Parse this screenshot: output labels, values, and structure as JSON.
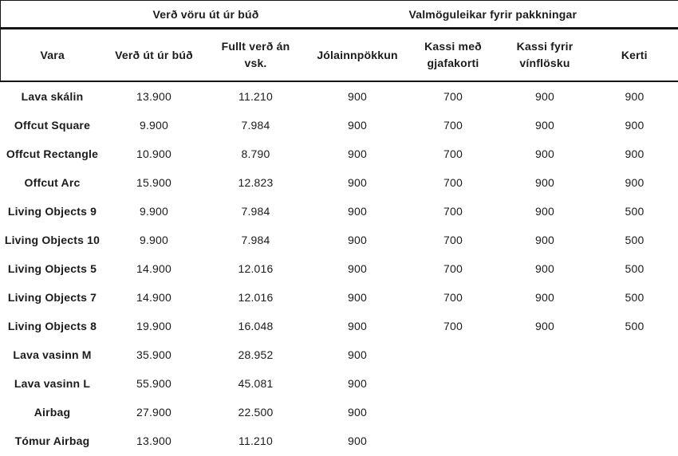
{
  "table": {
    "group_headers": [
      {
        "label": "Verð vöru út úr búð",
        "colspan": 2
      },
      {
        "label": "Valmöguleikar fyrir pakkningar",
        "colspan": 4
      }
    ],
    "columns": [
      "Vara",
      "Verð út úr búð",
      "Fullt verð án vsk.",
      "Jólainnpökkun",
      "Kassi með gjafakorti",
      "Kassi fyrir vínflösku",
      "Kerti"
    ],
    "rows": [
      {
        "cells": [
          "Lava skálin",
          "13.900",
          "11.210",
          "900",
          "700",
          "900",
          "900"
        ]
      },
      {
        "cells": [
          "Offcut Square",
          "9.900",
          "7.984",
          "900",
          "700",
          "900",
          "900"
        ]
      },
      {
        "cells": [
          "Offcut Rectangle",
          "10.900",
          "8.790",
          "900",
          "700",
          "900",
          "900"
        ]
      },
      {
        "cells": [
          "Offcut Arc",
          "15.900",
          "12.823",
          "900",
          "700",
          "900",
          "900"
        ]
      },
      {
        "cells": [
          "Living Objects 9",
          "9.900",
          "7.984",
          "900",
          "700",
          "900",
          "500"
        ]
      },
      {
        "cells": [
          "Living Objects 10",
          "9.900",
          "7.984",
          "900",
          "700",
          "900",
          "500"
        ]
      },
      {
        "cells": [
          "Living Objects 5",
          "14.900",
          "12.016",
          "900",
          "700",
          "900",
          "500"
        ]
      },
      {
        "cells": [
          "Living Objects 7",
          "14.900",
          "12.016",
          "900",
          "700",
          "900",
          "500"
        ]
      },
      {
        "cells": [
          "Living Objects 8",
          "19.900",
          "16.048",
          "900",
          "700",
          "900",
          "500"
        ]
      },
      {
        "cells": [
          "Lava vasinn M",
          "35.900",
          "28.952",
          "900",
          "",
          "",
          ""
        ]
      },
      {
        "cells": [
          "Lava vasinn L",
          "55.900",
          "45.081",
          "900",
          "",
          "",
          ""
        ]
      },
      {
        "cells": [
          "Airbag",
          "27.900",
          "22.500",
          "900",
          "",
          "",
          ""
        ]
      },
      {
        "cells": [
          "Tómur Airbag",
          "13.900",
          "11.210",
          "900",
          "",
          "",
          ""
        ]
      }
    ],
    "colors": {
      "text": "#1b1b1b",
      "line": "#161616",
      "background": "#ffffff"
    }
  }
}
